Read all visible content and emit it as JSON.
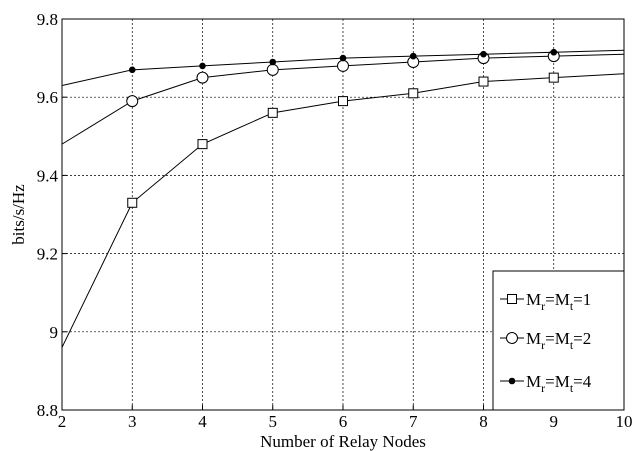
{
  "chart_data": {
    "type": "line",
    "xlabel": "Number of Relay Nodes",
    "ylabel": "bits/s/Hz",
    "xlim": [
      2,
      10
    ],
    "ylim": [
      8.8,
      9.8
    ],
    "x_ticks": [
      "2",
      "3",
      "4",
      "5",
      "6",
      "7",
      "8",
      "9",
      "10"
    ],
    "y_ticks": [
      "8.8",
      "9",
      "9.2",
      "9.4",
      "9.6",
      "9.8"
    ],
    "grid": true,
    "legend_position": "bottom-right",
    "x": [
      2,
      3,
      4,
      5,
      6,
      7,
      8,
      9,
      10
    ],
    "series": [
      {
        "name": "M_r=M_t=1",
        "label_parts": [
          "M",
          "r",
          "=M",
          "t",
          "=1"
        ],
        "marker": "square-open",
        "values": [
          8.96,
          9.33,
          9.48,
          9.56,
          9.59,
          9.61,
          9.64,
          9.65,
          9.66
        ]
      },
      {
        "name": "M_r=M_t=2",
        "label_parts": [
          "M",
          "r",
          "=M",
          "t",
          "=2"
        ],
        "marker": "circle-open",
        "values": [
          9.48,
          9.59,
          9.65,
          9.67,
          9.68,
          9.69,
          9.7,
          9.705,
          9.71
        ]
      },
      {
        "name": "M_r=M_t=4",
        "label_parts": [
          "M",
          "r",
          "=M",
          "t",
          "=4"
        ],
        "marker": "dot-filled",
        "values": [
          9.63,
          9.67,
          9.68,
          9.69,
          9.7,
          9.705,
          9.71,
          9.715,
          9.72
        ]
      }
    ]
  }
}
